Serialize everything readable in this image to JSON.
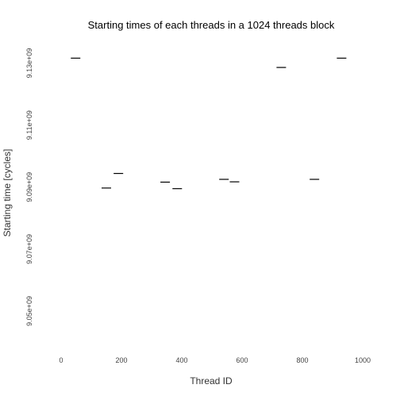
{
  "chart_data": {
    "type": "scatter",
    "title": "Starting times of each threads in a 1024 threads block",
    "xlabel": "Thread ID",
    "ylabel": "Starting time [cycles]",
    "xlim": [
      -50,
      1050
    ],
    "ylim": [
      9040000000.0,
      9135000000.0
    ],
    "xticks": [
      0,
      200,
      400,
      600,
      800,
      1000
    ],
    "xtick_labels": [
      "0",
      "200",
      "400",
      "600",
      "800",
      "1000"
    ],
    "yticks": [
      9050000000.0,
      9070000000.0,
      9090000000.0,
      9110000000.0,
      9130000000.0
    ],
    "ytick_labels": [
      "9.05e+09",
      "9.07e+09",
      "9.09e+09",
      "9.11e+09",
      "9.13e+09"
    ],
    "grid": false,
    "marker": "dash",
    "points": [
      {
        "x": 48,
        "y": 9131600000.0
      },
      {
        "x": 150,
        "y": 9089700000.0
      },
      {
        "x": 190,
        "y": 9094400000.0
      },
      {
        "x": 345,
        "y": 9091600000.0
      },
      {
        "x": 385,
        "y": 9089500000.0
      },
      {
        "x": 540,
        "y": 9092500000.0
      },
      {
        "x": 575,
        "y": 9091700000.0
      },
      {
        "x": 730,
        "y": 9128600000.0
      },
      {
        "x": 840,
        "y": 9092500000.0
      },
      {
        "x": 930,
        "y": 9131600000.0
      }
    ]
  }
}
